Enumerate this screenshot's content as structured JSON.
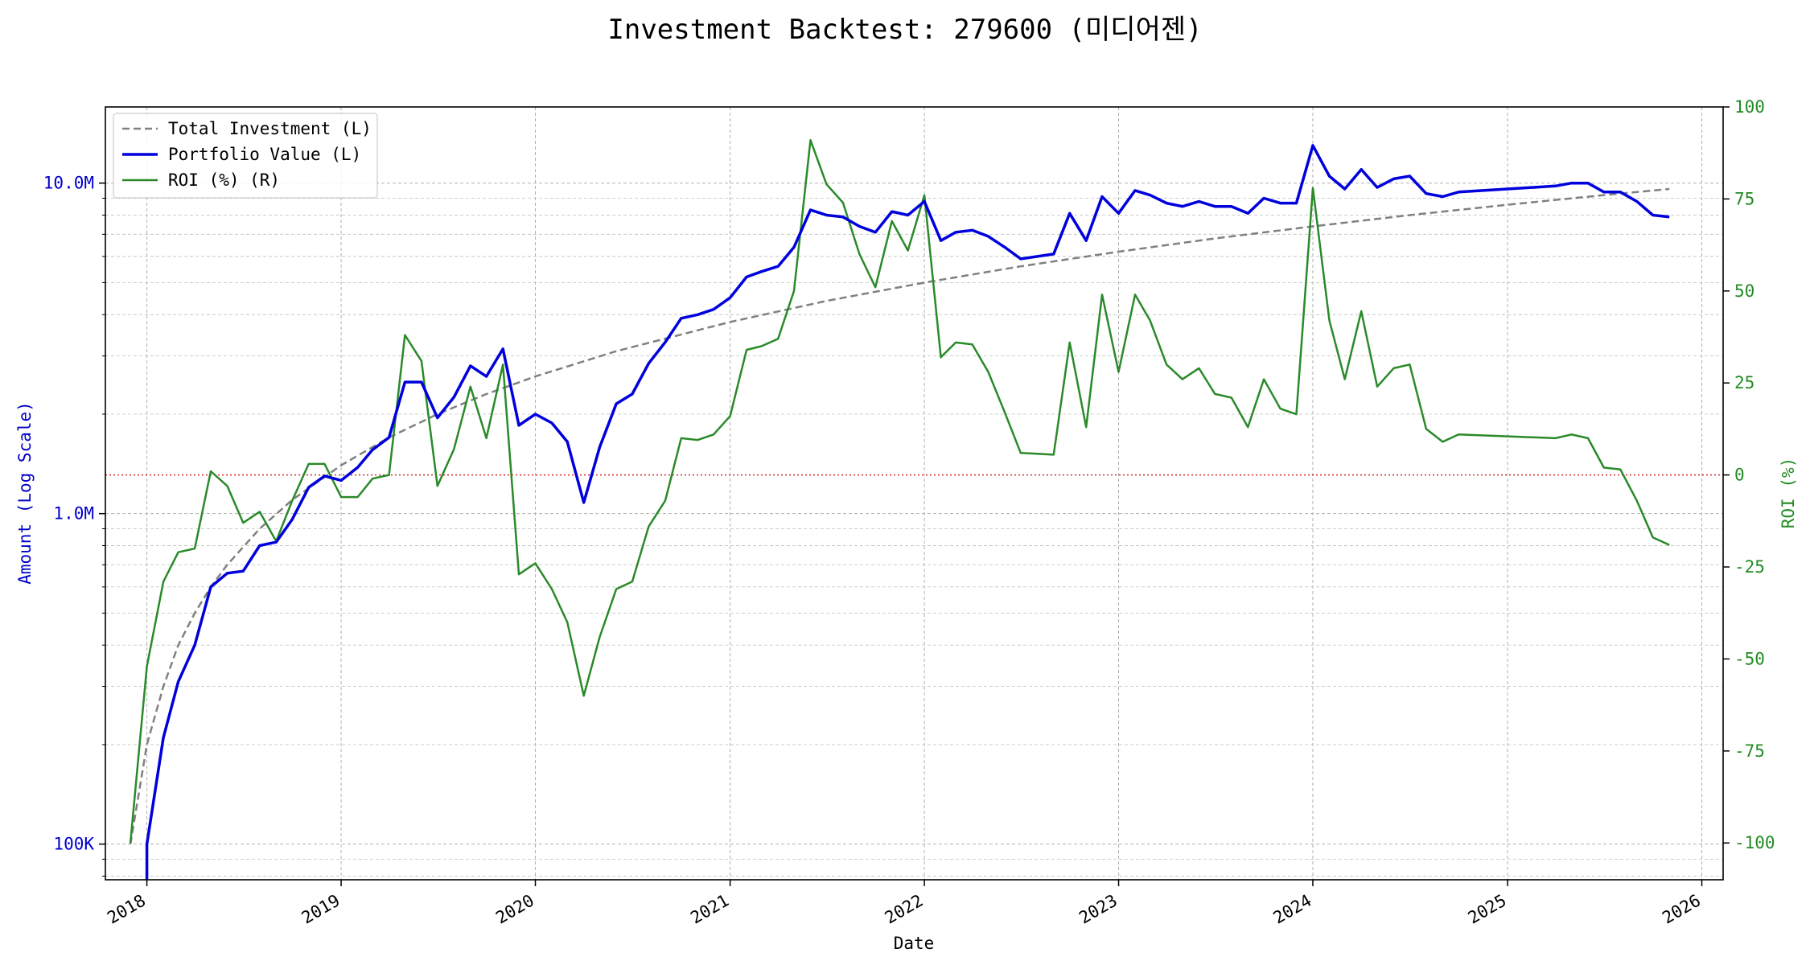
{
  "chart_data": {
    "type": "line",
    "title": "Investment Backtest: 279600 (미디어젠)",
    "xlabel": "Date",
    "ylabel_left": "Amount (Log Scale)",
    "ylabel_right": "ROI (%)",
    "left_scale": "log",
    "left_ylim": [
      78000,
      17000000
    ],
    "right_ylim": [
      -110,
      100
    ],
    "xlim": [
      "2017-10-15",
      "2026-02-10"
    ],
    "grid": true,
    "legend_position": "top-left",
    "x_ticks": [
      "2018",
      "2019",
      "2020",
      "2021",
      "2022",
      "2023",
      "2024",
      "2025",
      "2026"
    ],
    "left_ticks": [
      {
        "value": 100000,
        "label": "100K"
      },
      {
        "value": 1000000,
        "label": "1.0M"
      },
      {
        "value": 10000000,
        "label": "10.0M"
      }
    ],
    "right_ticks": [
      "100",
      "75",
      "50",
      "25",
      "0",
      "-25",
      "-50",
      "-75",
      "-100"
    ],
    "reference_line": {
      "axis": "right",
      "value": 0,
      "color": "#d62728",
      "style": "dotted"
    },
    "colors": {
      "total_investment": "#808080",
      "portfolio_value": "#0000dd",
      "roi": "#2a8a2a",
      "left_axis": "#0000cc",
      "right_axis": "#228b22"
    },
    "series": [
      {
        "name": "Total Investment (L)",
        "axis": "left",
        "style": "dashed",
        "points": [
          [
            "2017-12-01",
            100000
          ],
          [
            "2018-01-01",
            200000
          ],
          [
            "2018-02-01",
            300000
          ],
          [
            "2018-03-01",
            400000
          ],
          [
            "2018-04-01",
            500000
          ],
          [
            "2018-05-01",
            600000
          ],
          [
            "2018-06-01",
            700000
          ],
          [
            "2018-08-01",
            900000
          ],
          [
            "2018-10-01",
            1100000
          ],
          [
            "2019-01-01",
            1400000
          ],
          [
            "2019-04-01",
            1700000
          ],
          [
            "2019-07-01",
            2000000
          ],
          [
            "2019-10-01",
            2300000
          ],
          [
            "2020-01-01",
            2600000
          ],
          [
            "2020-06-01",
            3100000
          ],
          [
            "2021-01-01",
            3800000
          ],
          [
            "2021-07-01",
            4400000
          ],
          [
            "2022-01-01",
            5000000
          ],
          [
            "2022-07-01",
            5600000
          ],
          [
            "2023-01-01",
            6200000
          ],
          [
            "2023-07-01",
            6800000
          ],
          [
            "2024-01-01",
            7400000
          ],
          [
            "2024-07-01",
            8000000
          ],
          [
            "2025-01-01",
            8600000
          ],
          [
            "2025-07-01",
            9200000
          ],
          [
            "2025-11-01",
            9600000
          ]
        ]
      },
      {
        "name": "Portfolio Value (L)",
        "axis": "left",
        "style": "solid",
        "points": [
          [
            "2018-01-01",
            60000
          ],
          [
            "2018-01-01",
            100000
          ],
          [
            "2018-02-01",
            210000
          ],
          [
            "2018-03-01",
            310000
          ],
          [
            "2018-04-01",
            400000
          ],
          [
            "2018-05-01",
            600000
          ],
          [
            "2018-06-01",
            660000
          ],
          [
            "2018-07-01",
            670000
          ],
          [
            "2018-08-01",
            800000
          ],
          [
            "2018-09-01",
            820000
          ],
          [
            "2018-10-01",
            960000
          ],
          [
            "2018-11-01",
            1200000
          ],
          [
            "2018-12-01",
            1300000
          ],
          [
            "2019-01-01",
            1260000
          ],
          [
            "2019-02-01",
            1380000
          ],
          [
            "2019-03-01",
            1560000
          ],
          [
            "2019-04-01",
            1700000
          ],
          [
            "2019-05-01",
            2500000
          ],
          [
            "2019-06-01",
            2500000
          ],
          [
            "2019-07-01",
            1950000
          ],
          [
            "2019-08-01",
            2250000
          ],
          [
            "2019-09-01",
            2800000
          ],
          [
            "2019-10-01",
            2600000
          ],
          [
            "2019-11-01",
            3150000
          ],
          [
            "2019-12-01",
            1850000
          ],
          [
            "2020-01-01",
            2000000
          ],
          [
            "2020-02-01",
            1880000
          ],
          [
            "2020-03-01",
            1650000
          ],
          [
            "2020-04-01",
            1080000
          ],
          [
            "2020-05-01",
            1590000
          ],
          [
            "2020-06-01",
            2150000
          ],
          [
            "2020-07-01",
            2300000
          ],
          [
            "2020-08-01",
            2850000
          ],
          [
            "2020-09-01",
            3300000
          ],
          [
            "2020-10-01",
            3900000
          ],
          [
            "2020-11-01",
            4000000
          ],
          [
            "2020-12-01",
            4150000
          ],
          [
            "2021-01-01",
            4500000
          ],
          [
            "2021-02-01",
            5200000
          ],
          [
            "2021-03-01",
            5400000
          ],
          [
            "2021-04-01",
            5600000
          ],
          [
            "2021-05-01",
            6400000
          ],
          [
            "2021-06-01",
            8300000
          ],
          [
            "2021-07-01",
            8000000
          ],
          [
            "2021-08-01",
            7900000
          ],
          [
            "2021-09-01",
            7400000
          ],
          [
            "2021-10-01",
            7100000
          ],
          [
            "2021-11-01",
            8200000
          ],
          [
            "2021-12-01",
            8000000
          ],
          [
            "2022-01-01",
            8800000
          ],
          [
            "2022-02-01",
            6700000
          ],
          [
            "2022-03-01",
            7100000
          ],
          [
            "2022-04-01",
            7200000
          ],
          [
            "2022-05-01",
            6900000
          ],
          [
            "2022-06-01",
            6400000
          ],
          [
            "2022-07-01",
            5900000
          ],
          [
            "2022-09-01",
            6100000
          ],
          [
            "2022-10-01",
            8100000
          ],
          [
            "2022-11-01",
            6700000
          ],
          [
            "2022-12-01",
            9100000
          ],
          [
            "2023-01-01",
            8100000
          ],
          [
            "2023-02-01",
            9500000
          ],
          [
            "2023-03-01",
            9200000
          ],
          [
            "2023-04-01",
            8700000
          ],
          [
            "2023-05-01",
            8500000
          ],
          [
            "2023-06-01",
            8800000
          ],
          [
            "2023-07-01",
            8500000
          ],
          [
            "2023-08-01",
            8500000
          ],
          [
            "2023-09-01",
            8100000
          ],
          [
            "2023-10-01",
            9000000
          ],
          [
            "2023-11-01",
            8700000
          ],
          [
            "2023-12-01",
            8700000
          ],
          [
            "2024-01-01",
            13000000
          ],
          [
            "2024-02-01",
            10500000
          ],
          [
            "2024-03-01",
            9600000
          ],
          [
            "2024-04-01",
            11000000
          ],
          [
            "2024-05-01",
            9700000
          ],
          [
            "2024-06-01",
            10300000
          ],
          [
            "2024-07-01",
            10500000
          ],
          [
            "2024-08-01",
            9300000
          ],
          [
            "2024-09-01",
            9100000
          ],
          [
            "2024-10-01",
            9400000
          ],
          [
            "2025-04-01",
            9800000
          ],
          [
            "2025-05-01",
            10000000
          ],
          [
            "2025-06-01",
            10000000
          ],
          [
            "2025-07-01",
            9400000
          ],
          [
            "2025-08-01",
            9400000
          ],
          [
            "2025-09-01",
            8800000
          ],
          [
            "2025-10-01",
            8000000
          ],
          [
            "2025-11-01",
            7900000
          ]
        ]
      },
      {
        "name": "ROI (%) (R)",
        "axis": "right",
        "style": "solid",
        "points": [
          [
            "2017-12-01",
            -100
          ],
          [
            "2018-01-01",
            -52
          ],
          [
            "2018-02-01",
            -29
          ],
          [
            "2018-03-01",
            -21
          ],
          [
            "2018-04-01",
            -20
          ],
          [
            "2018-05-01",
            1
          ],
          [
            "2018-06-01",
            -3
          ],
          [
            "2018-07-01",
            -13
          ],
          [
            "2018-08-01",
            -10
          ],
          [
            "2018-09-01",
            -18
          ],
          [
            "2018-10-01",
            -7
          ],
          [
            "2018-11-01",
            3
          ],
          [
            "2018-12-01",
            3
          ],
          [
            "2019-01-01",
            -6
          ],
          [
            "2019-02-01",
            -6
          ],
          [
            "2019-03-01",
            -1
          ],
          [
            "2019-04-01",
            0
          ],
          [
            "2019-05-01",
            38
          ],
          [
            "2019-06-01",
            31
          ],
          [
            "2019-07-01",
            -3
          ],
          [
            "2019-08-01",
            7
          ],
          [
            "2019-09-01",
            24
          ],
          [
            "2019-10-01",
            10
          ],
          [
            "2019-11-01",
            30
          ],
          [
            "2019-12-01",
            -27
          ],
          [
            "2020-01-01",
            -24
          ],
          [
            "2020-02-01",
            -31
          ],
          [
            "2020-03-01",
            -40
          ],
          [
            "2020-04-01",
            -60
          ],
          [
            "2020-05-01",
            -44
          ],
          [
            "2020-06-01",
            -31
          ],
          [
            "2020-07-01",
            -29
          ],
          [
            "2020-08-01",
            -14
          ],
          [
            "2020-09-01",
            -7
          ],
          [
            "2020-10-01",
            10
          ],
          [
            "2020-11-01",
            9.5
          ],
          [
            "2020-12-01",
            11
          ],
          [
            "2021-01-01",
            16
          ],
          [
            "2021-02-01",
            34
          ],
          [
            "2021-03-01",
            35
          ],
          [
            "2021-04-01",
            37
          ],
          [
            "2021-05-01",
            50
          ],
          [
            "2021-06-01",
            91
          ],
          [
            "2021-07-01",
            79
          ],
          [
            "2021-08-01",
            74
          ],
          [
            "2021-09-01",
            60
          ],
          [
            "2021-10-01",
            51
          ],
          [
            "2021-11-01",
            69
          ],
          [
            "2021-12-01",
            61
          ],
          [
            "2022-01-01",
            76
          ],
          [
            "2022-02-01",
            32
          ],
          [
            "2022-03-01",
            36
          ],
          [
            "2022-04-01",
            35.5
          ],
          [
            "2022-05-01",
            28
          ],
          [
            "2022-06-01",
            17
          ],
          [
            "2022-07-01",
            6
          ],
          [
            "2022-09-01",
            5.5
          ],
          [
            "2022-10-01",
            36
          ],
          [
            "2022-11-01",
            13
          ],
          [
            "2022-12-01",
            49
          ],
          [
            "2023-01-01",
            28
          ],
          [
            "2023-02-01",
            49
          ],
          [
            "2023-03-01",
            42
          ],
          [
            "2023-04-01",
            30
          ],
          [
            "2023-05-01",
            26
          ],
          [
            "2023-06-01",
            29
          ],
          [
            "2023-07-01",
            22
          ],
          [
            "2023-08-01",
            21
          ],
          [
            "2023-09-01",
            13
          ],
          [
            "2023-10-01",
            26
          ],
          [
            "2023-11-01",
            18
          ],
          [
            "2023-12-01",
            16.5
          ],
          [
            "2024-01-01",
            78
          ],
          [
            "2024-02-01",
            42
          ],
          [
            "2024-03-01",
            26
          ],
          [
            "2024-04-01",
            44.5
          ],
          [
            "2024-05-01",
            24
          ],
          [
            "2024-06-01",
            29
          ],
          [
            "2024-07-01",
            30
          ],
          [
            "2024-08-01",
            12.5
          ],
          [
            "2024-09-01",
            9
          ],
          [
            "2024-10-01",
            11
          ],
          [
            "2025-04-01",
            10
          ],
          [
            "2025-05-01",
            11
          ],
          [
            "2025-06-01",
            10
          ],
          [
            "2025-07-01",
            2
          ],
          [
            "2025-08-01",
            1.5
          ],
          [
            "2025-09-01",
            -7
          ],
          [
            "2025-10-01",
            -17
          ],
          [
            "2025-11-01",
            -19
          ]
        ]
      }
    ]
  }
}
